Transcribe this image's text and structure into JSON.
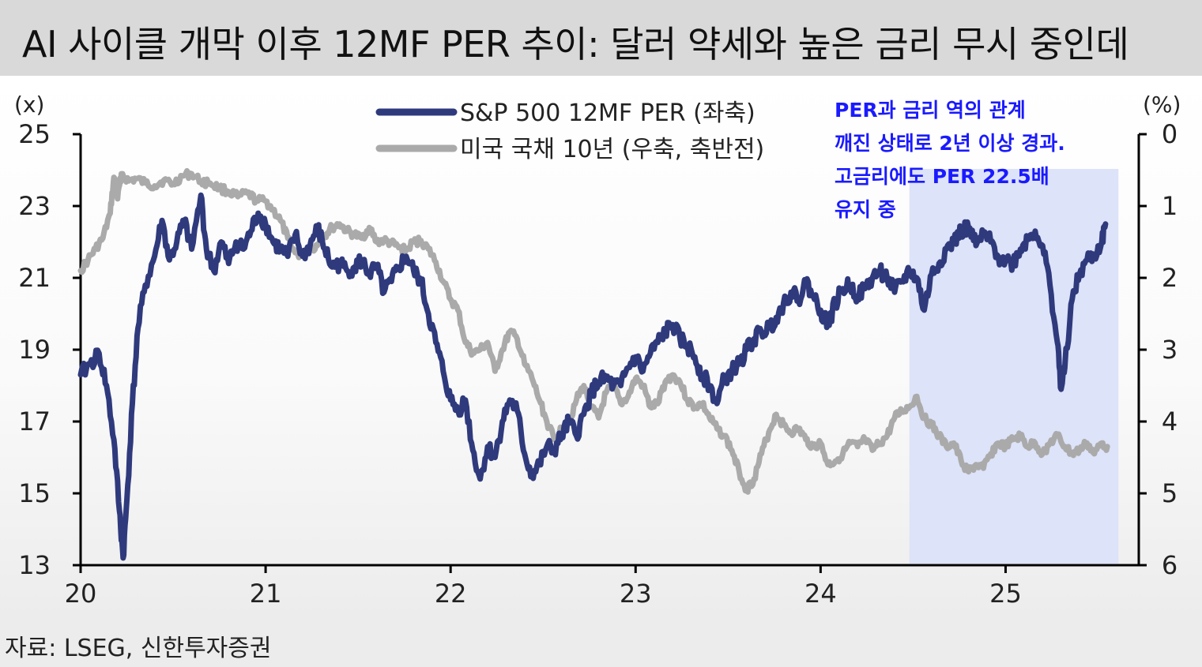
{
  "title": "AI 사이클 개막 이후 12MF PER 추이: 달러 약세와 높은 금리 무시 중인데",
  "source": "자료: LSEG, 신한투자증권",
  "colors": {
    "per_line": "#2f3a7d",
    "yield_line": "#aaaaaa",
    "highlight": "#dde3f8",
    "annotation": "#1a1aff"
  },
  "annotation": {
    "lines": [
      "PER과 금리 역의 관계",
      "깨진 상태로 2년 이상 경과.",
      "고금리에도 PER 22.5배",
      "유지 중"
    ],
    "highlight_x_range": [
      24.48,
      25.61
    ]
  },
  "chart_data": {
    "type": "line",
    "y_left_unit": "(x)",
    "y_right_unit": "(%)",
    "y_left_range": [
      13,
      25
    ],
    "y_left_ticks": [
      "13",
      "15",
      "17",
      "19",
      "21",
      "23",
      "25"
    ],
    "y_right_range": [
      0,
      6
    ],
    "y_right_inverted": true,
    "y_right_ticks": [
      "0",
      "1",
      "2",
      "3",
      "4",
      "5",
      "6"
    ],
    "x_range": [
      20,
      25.72
    ],
    "x_ticks": [
      "20",
      "21",
      "22",
      "23",
      "24",
      "25"
    ],
    "legend": [
      {
        "label": "S&P 500 12MF PER (좌축)",
        "series": "per"
      },
      {
        "label": "미국 국채 10년 (우축, 축반전)",
        "series": "yield"
      }
    ],
    "series": [
      {
        "name": "S&P 500 12MF PER (좌축)",
        "axis": "left",
        "points": [
          [
            20.0,
            18.3
          ],
          [
            20.05,
            18.6
          ],
          [
            20.1,
            18.9
          ],
          [
            20.14,
            18.0
          ],
          [
            20.18,
            16.5
          ],
          [
            20.21,
            14.5
          ],
          [
            20.23,
            13.2
          ],
          [
            20.25,
            14.8
          ],
          [
            20.28,
            17.5
          ],
          [
            20.31,
            19.6
          ],
          [
            20.35,
            20.8
          ],
          [
            20.4,
            21.6
          ],
          [
            20.44,
            22.6
          ],
          [
            20.48,
            21.5
          ],
          [
            20.52,
            22.0
          ],
          [
            20.56,
            22.6
          ],
          [
            20.6,
            21.8
          ],
          [
            20.65,
            23.3
          ],
          [
            20.68,
            21.8
          ],
          [
            20.72,
            21.2
          ],
          [
            20.76,
            22.0
          ],
          [
            20.8,
            21.4
          ],
          [
            20.84,
            22.0
          ],
          [
            20.88,
            21.8
          ],
          [
            20.92,
            22.3
          ],
          [
            20.96,
            22.8
          ],
          [
            21.0,
            22.5
          ],
          [
            21.04,
            22.0
          ],
          [
            21.08,
            21.8
          ],
          [
            21.12,
            21.6
          ],
          [
            21.16,
            22.2
          ],
          [
            21.2,
            21.6
          ],
          [
            21.24,
            21.9
          ],
          [
            21.28,
            22.4
          ],
          [
            21.32,
            21.8
          ],
          [
            21.36,
            21.3
          ],
          [
            21.4,
            21.4
          ],
          [
            21.44,
            21.2
          ],
          [
            21.48,
            21.3
          ],
          [
            21.52,
            21.5
          ],
          [
            21.56,
            21.1
          ],
          [
            21.6,
            21.3
          ],
          [
            21.64,
            20.6
          ],
          [
            21.68,
            20.9
          ],
          [
            21.72,
            21.3
          ],
          [
            21.76,
            21.6
          ],
          [
            21.8,
            21.2
          ],
          [
            21.84,
            20.9
          ],
          [
            21.88,
            20.0
          ],
          [
            21.92,
            19.2
          ],
          [
            21.96,
            18.4
          ],
          [
            22.0,
            17.6
          ],
          [
            22.04,
            17.3
          ],
          [
            22.08,
            17.6
          ],
          [
            22.12,
            16.2
          ],
          [
            22.16,
            15.4
          ],
          [
            22.2,
            16.3
          ],
          [
            22.24,
            16.0
          ],
          [
            22.28,
            17.0
          ],
          [
            22.32,
            17.6
          ],
          [
            22.36,
            17.3
          ],
          [
            22.4,
            16.1
          ],
          [
            22.44,
            15.5
          ],
          [
            22.48,
            15.8
          ],
          [
            22.52,
            16.3
          ],
          [
            22.56,
            16.2
          ],
          [
            22.6,
            16.6
          ],
          [
            22.64,
            17.0
          ],
          [
            22.68,
            16.6
          ],
          [
            22.72,
            17.2
          ],
          [
            22.76,
            17.8
          ],
          [
            22.8,
            18.1
          ],
          [
            22.84,
            18.2
          ],
          [
            22.88,
            18.0
          ],
          [
            22.92,
            18.0
          ],
          [
            22.96,
            18.5
          ],
          [
            23.0,
            18.8
          ],
          [
            23.04,
            18.4
          ],
          [
            23.08,
            18.9
          ],
          [
            23.12,
            19.2
          ],
          [
            23.16,
            19.5
          ],
          [
            23.2,
            19.7
          ],
          [
            23.24,
            19.3
          ],
          [
            23.28,
            19.1
          ],
          [
            23.32,
            18.8
          ],
          [
            23.36,
            18.3
          ],
          [
            23.4,
            18.0
          ],
          [
            23.44,
            17.5
          ],
          [
            23.48,
            18.2
          ],
          [
            23.52,
            18.4
          ],
          [
            23.56,
            18.6
          ],
          [
            23.6,
            19.0
          ],
          [
            23.64,
            19.3
          ],
          [
            23.68,
            19.5
          ],
          [
            23.72,
            19.6
          ],
          [
            23.76,
            19.9
          ],
          [
            23.8,
            20.3
          ],
          [
            23.84,
            20.6
          ],
          [
            23.88,
            20.4
          ],
          [
            23.92,
            20.9
          ],
          [
            23.96,
            20.5
          ],
          [
            24.0,
            20.1
          ],
          [
            24.04,
            19.7
          ],
          [
            24.08,
            20.3
          ],
          [
            24.12,
            20.7
          ],
          [
            24.16,
            20.8
          ],
          [
            24.2,
            20.5
          ],
          [
            24.24,
            20.7
          ],
          [
            24.28,
            21.0
          ],
          [
            24.32,
            21.2
          ],
          [
            24.36,
            21.0
          ],
          [
            24.4,
            20.6
          ],
          [
            24.44,
            20.9
          ],
          [
            24.48,
            21.2
          ],
          [
            24.52,
            21.0
          ],
          [
            24.56,
            20.1
          ],
          [
            24.6,
            21.1
          ],
          [
            24.64,
            21.4
          ],
          [
            24.68,
            21.8
          ],
          [
            24.72,
            22.0
          ],
          [
            24.76,
            22.3
          ],
          [
            24.8,
            22.4
          ],
          [
            24.84,
            21.9
          ],
          [
            24.88,
            22.2
          ],
          [
            24.92,
            22.0
          ],
          [
            24.96,
            21.6
          ],
          [
            25.0,
            21.5
          ],
          [
            25.04,
            21.4
          ],
          [
            25.08,
            21.8
          ],
          [
            25.12,
            22.1
          ],
          [
            25.16,
            22.3
          ],
          [
            25.2,
            21.9
          ],
          [
            25.24,
            20.8
          ],
          [
            25.28,
            19.2
          ],
          [
            25.3,
            17.9
          ],
          [
            25.32,
            18.5
          ],
          [
            25.36,
            20.4
          ],
          [
            25.4,
            21.1
          ],
          [
            25.44,
            21.5
          ],
          [
            25.48,
            21.6
          ],
          [
            25.52,
            22.0
          ],
          [
            25.54,
            22.5
          ]
        ]
      },
      {
        "name": "미국 국채 10년 (우축, 축반전)",
        "axis": "right",
        "points": [
          [
            20.0,
            1.9
          ],
          [
            20.04,
            1.75
          ],
          [
            20.08,
            1.6
          ],
          [
            20.12,
            1.45
          ],
          [
            20.16,
            1.1
          ],
          [
            20.18,
            0.6
          ],
          [
            20.2,
            0.9
          ],
          [
            20.22,
            0.55
          ],
          [
            20.26,
            0.65
          ],
          [
            20.3,
            0.62
          ],
          [
            20.35,
            0.68
          ],
          [
            20.4,
            0.72
          ],
          [
            20.45,
            0.64
          ],
          [
            20.5,
            0.7
          ],
          [
            20.55,
            0.58
          ],
          [
            20.6,
            0.55
          ],
          [
            20.65,
            0.66
          ],
          [
            20.7,
            0.68
          ],
          [
            20.75,
            0.75
          ],
          [
            20.8,
            0.8
          ],
          [
            20.85,
            0.87
          ],
          [
            20.9,
            0.82
          ],
          [
            20.95,
            0.92
          ],
          [
            21.0,
            0.93
          ],
          [
            21.04,
            1.05
          ],
          [
            21.08,
            1.2
          ],
          [
            21.12,
            1.45
          ],
          [
            21.16,
            1.65
          ],
          [
            21.2,
            1.7
          ],
          [
            21.24,
            1.6
          ],
          [
            21.28,
            1.55
          ],
          [
            21.32,
            1.4
          ],
          [
            21.36,
            1.3
          ],
          [
            21.4,
            1.25
          ],
          [
            21.44,
            1.35
          ],
          [
            21.48,
            1.4
          ],
          [
            21.52,
            1.45
          ],
          [
            21.56,
            1.3
          ],
          [
            21.6,
            1.5
          ],
          [
            21.64,
            1.48
          ],
          [
            21.68,
            1.52
          ],
          [
            21.72,
            1.58
          ],
          [
            21.76,
            1.62
          ],
          [
            21.8,
            1.5
          ],
          [
            21.84,
            1.48
          ],
          [
            21.88,
            1.6
          ],
          [
            21.92,
            1.78
          ],
          [
            21.96,
            2.05
          ],
          [
            22.0,
            2.3
          ],
          [
            22.04,
            2.45
          ],
          [
            22.08,
            2.9
          ],
          [
            22.12,
            3.05
          ],
          [
            22.16,
            3.0
          ],
          [
            22.2,
            2.9
          ],
          [
            22.24,
            3.3
          ],
          [
            22.28,
            3.0
          ],
          [
            22.32,
            2.75
          ],
          [
            22.36,
            2.85
          ],
          [
            22.4,
            3.2
          ],
          [
            22.44,
            3.4
          ],
          [
            22.48,
            3.7
          ],
          [
            22.52,
            4.0
          ],
          [
            22.56,
            4.25
          ],
          [
            22.6,
            4.1
          ],
          [
            22.64,
            4.0
          ],
          [
            22.68,
            3.7
          ],
          [
            22.72,
            3.5
          ],
          [
            22.76,
            3.8
          ],
          [
            22.8,
            3.95
          ],
          [
            22.84,
            3.6
          ],
          [
            22.88,
            3.5
          ],
          [
            22.92,
            3.75
          ],
          [
            22.96,
            3.65
          ],
          [
            23.0,
            3.4
          ],
          [
            23.04,
            3.5
          ],
          [
            23.08,
            3.8
          ],
          [
            23.12,
            3.75
          ],
          [
            23.16,
            3.45
          ],
          [
            23.2,
            3.35
          ],
          [
            23.24,
            3.45
          ],
          [
            23.28,
            3.7
          ],
          [
            23.32,
            3.8
          ],
          [
            23.36,
            3.75
          ],
          [
            23.4,
            3.95
          ],
          [
            23.44,
            4.1
          ],
          [
            23.48,
            4.2
          ],
          [
            23.52,
            4.4
          ],
          [
            23.56,
            4.7
          ],
          [
            23.6,
            4.95
          ],
          [
            23.64,
            4.8
          ],
          [
            23.68,
            4.45
          ],
          [
            23.72,
            4.15
          ],
          [
            23.76,
            3.9
          ],
          [
            23.8,
            4.05
          ],
          [
            23.84,
            4.15
          ],
          [
            23.88,
            4.1
          ],
          [
            23.92,
            4.25
          ],
          [
            23.96,
            4.35
          ],
          [
            24.0,
            4.3
          ],
          [
            24.04,
            4.6
          ],
          [
            24.08,
            4.55
          ],
          [
            24.12,
            4.45
          ],
          [
            24.16,
            4.3
          ],
          [
            24.2,
            4.35
          ],
          [
            24.24,
            4.25
          ],
          [
            24.28,
            4.4
          ],
          [
            24.32,
            4.3
          ],
          [
            24.36,
            4.2
          ],
          [
            24.4,
            3.95
          ],
          [
            24.44,
            3.85
          ],
          [
            24.48,
            3.8
          ],
          [
            24.52,
            3.65
          ],
          [
            24.56,
            3.95
          ],
          [
            24.6,
            4.05
          ],
          [
            24.64,
            4.2
          ],
          [
            24.68,
            4.35
          ],
          [
            24.72,
            4.3
          ],
          [
            24.76,
            4.55
          ],
          [
            24.8,
            4.7
          ],
          [
            24.84,
            4.6
          ],
          [
            24.88,
            4.65
          ],
          [
            24.92,
            4.45
          ],
          [
            24.96,
            4.3
          ],
          [
            25.0,
            4.35
          ],
          [
            25.04,
            4.25
          ],
          [
            25.08,
            4.2
          ],
          [
            25.12,
            4.35
          ],
          [
            25.16,
            4.3
          ],
          [
            25.2,
            4.45
          ],
          [
            25.24,
            4.3
          ],
          [
            25.28,
            4.2
          ],
          [
            25.32,
            4.35
          ],
          [
            25.36,
            4.45
          ],
          [
            25.4,
            4.4
          ],
          [
            25.44,
            4.3
          ],
          [
            25.48,
            4.45
          ],
          [
            25.52,
            4.3
          ],
          [
            25.55,
            4.35
          ]
        ]
      }
    ]
  }
}
